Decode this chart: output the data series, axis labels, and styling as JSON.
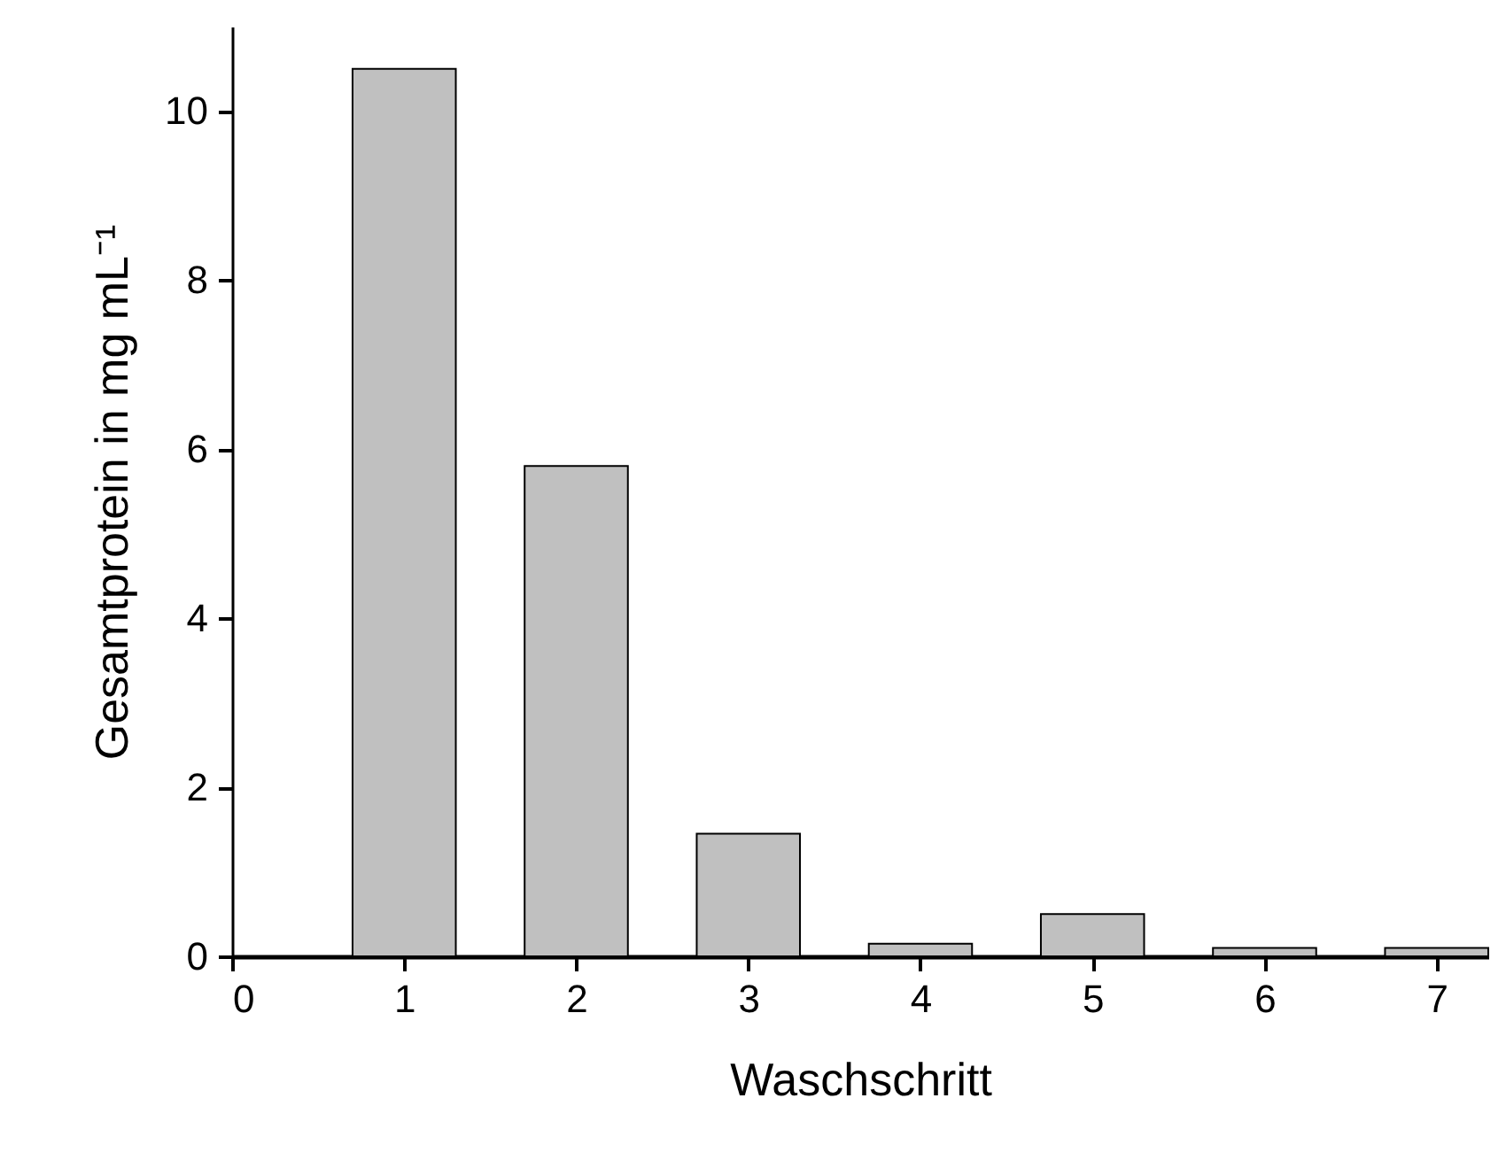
{
  "chart_data": {
    "type": "bar",
    "xlabel": "Waschschritt",
    "ylabel": "Gesamtprotein in mg mL⁻¹",
    "x": [
      1,
      2,
      3,
      4,
      5,
      6,
      7
    ],
    "values": [
      10.5,
      5.8,
      1.45,
      0.15,
      0.5,
      0.1,
      0.1
    ],
    "color": "#c0c0c0",
    "xlim": [
      0,
      7.3
    ],
    "xticks": [
      0,
      1,
      2,
      3,
      4,
      5,
      6,
      7
    ],
    "ylim": [
      0,
      11
    ],
    "yticks": [
      0,
      2,
      4,
      6,
      8,
      10
    ],
    "grid": false
  }
}
